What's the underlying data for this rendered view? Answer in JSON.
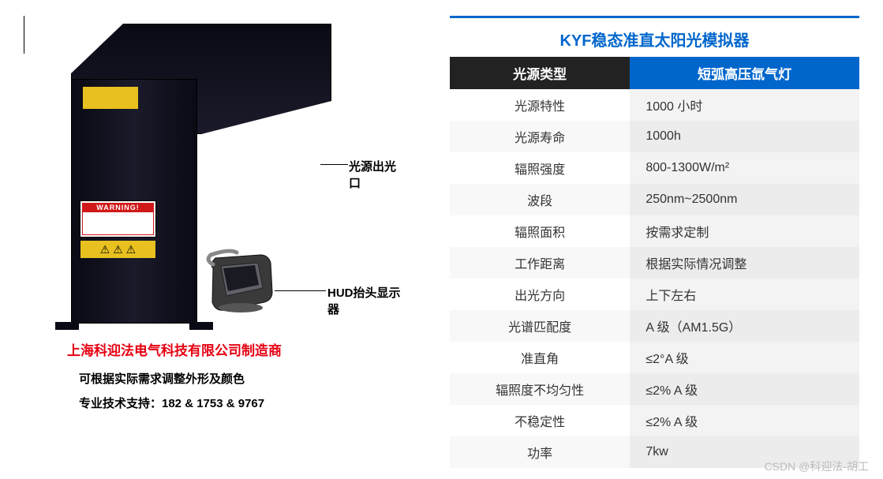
{
  "left": {
    "label_light_exit": "光源出光口",
    "label_hud": "HUD抬头显示器",
    "warning_top": "WARNING!",
    "company": "上海科迎法电气科技有限公司制造商",
    "sub1": "可根据实际需求调整外形及颜色",
    "sub2": "专业技术支持：182 & 1753 & 9767"
  },
  "table": {
    "title": "KYF稳态准直太阳光模拟器",
    "title_color": "#0066cc",
    "header_left": "光源类型",
    "header_right": "短弧高压氙气灯",
    "header_left_bg": "#222222",
    "header_right_bg": "#0066cc",
    "row_alt_bg": "#ececec",
    "rows": [
      {
        "k": "光源特性",
        "v": "1000 小时"
      },
      {
        "k": "光源寿命",
        "v": "1000h"
      },
      {
        "k": "辐照强度",
        "v": "800-1300W/m²"
      },
      {
        "k": "波段",
        "v": "250nm~2500nm"
      },
      {
        "k": "辐照面积",
        "v": "按需求定制"
      },
      {
        "k": "工作距离",
        "v": "根据实际情况调整"
      },
      {
        "k": "出光方向",
        "v": "上下左右"
      },
      {
        "k": "光谱匹配度",
        "v": "A 级（AM1.5G）"
      },
      {
        "k": "准直角",
        "v": "≤2°A 级"
      },
      {
        "k": "辐照度不均匀性",
        "v": "≤2% A 级"
      },
      {
        "k": "不稳定性",
        "v": "≤2% A 级"
      },
      {
        "k": "功率",
        "v": "7kw"
      }
    ]
  },
  "watermark": "CSDN @科迎法-胡工"
}
